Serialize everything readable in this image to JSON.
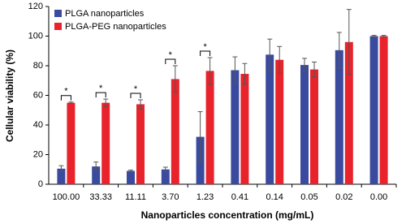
{
  "chart_data": {
    "type": "bar",
    "x_label": "Nanoparticles concentration (mg/mL)",
    "y_label": "Cellular viability (%)",
    "categories": [
      "100.00",
      "33.33",
      "11.11",
      "3.70",
      "1.23",
      "0.41",
      "0.14",
      "0.05",
      "0.02",
      "0.00"
    ],
    "series": [
      {
        "name": "PLGA nanoparticles",
        "color": "#3a4b9f",
        "values": [
          10.5,
          12,
          9,
          10,
          32,
          77,
          87.5,
          80.5,
          90.5,
          100
        ],
        "errors": [
          2,
          3,
          0.5,
          1.5,
          17,
          9,
          10.5,
          4.5,
          12,
          0.5
        ]
      },
      {
        "name": "PLGA-PEG nanoparticles",
        "color": "#e8232b",
        "values": [
          55,
          55,
          54,
          71,
          76.5,
          74.5,
          84,
          77.5,
          96,
          100
        ],
        "errors": [
          0.5,
          2.5,
          3,
          9,
          9,
          7,
          9,
          5,
          22,
          0.5
        ]
      }
    ],
    "annotations": [
      "*",
      "*",
      "*",
      "*",
      "*"
    ],
    "ylim": [
      0,
      120
    ],
    "yticks": [
      0,
      20,
      40,
      60,
      80,
      100,
      120
    ],
    "legend": "top-left"
  }
}
